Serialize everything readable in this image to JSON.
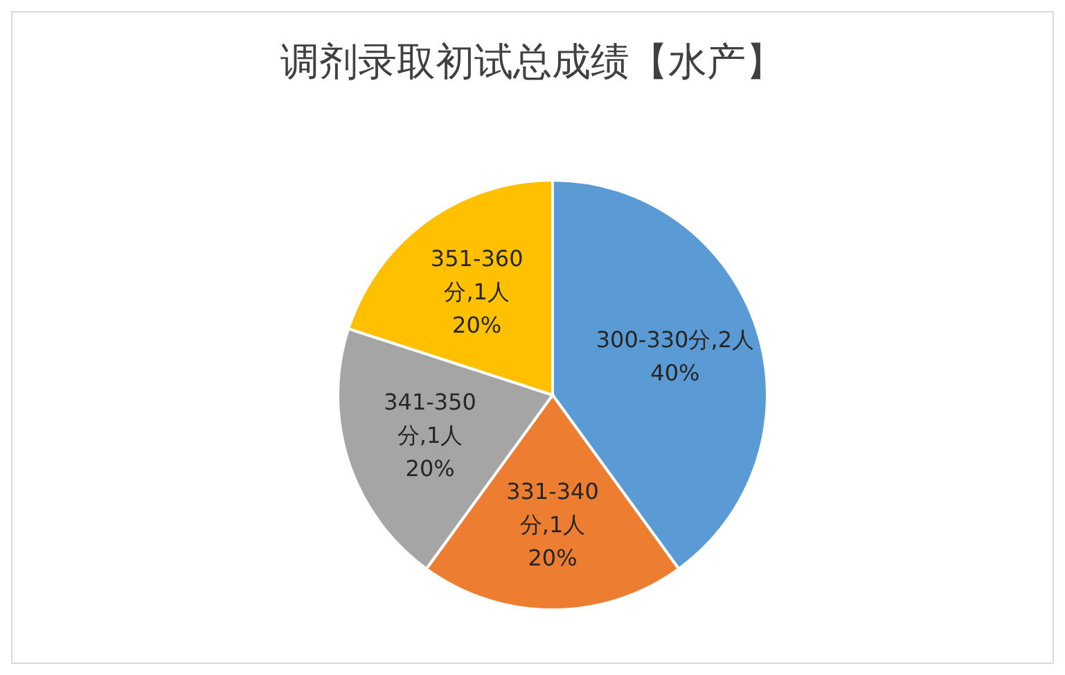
{
  "chart_data": {
    "type": "pie",
    "title": "调剂录取初试总成绩【水产】",
    "categories": [
      "300-330分,2人",
      "331-340分,1人",
      "341-350分,1人",
      "351-360分,1人"
    ],
    "values": [
      40,
      20,
      20,
      20
    ],
    "value_labels": [
      "40%",
      "20%",
      "20%",
      "20%"
    ],
    "colors": [
      "#5b9bd5",
      "#ed7d31",
      "#a5a5a5",
      "#ffc000"
    ],
    "legend": false
  }
}
